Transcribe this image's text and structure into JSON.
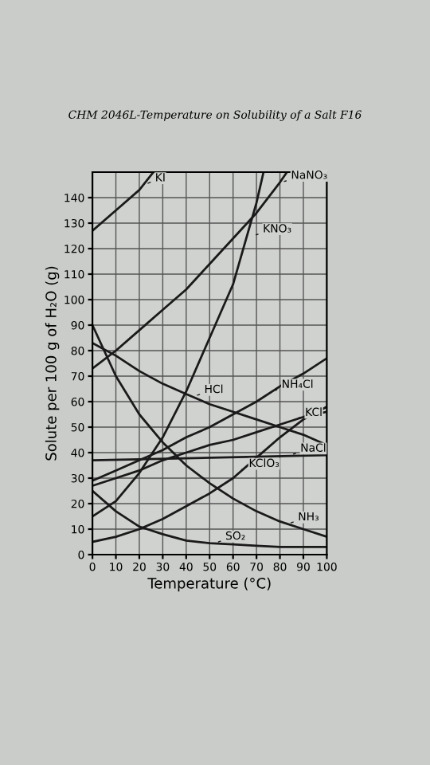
{
  "chart_data": {
    "type": "line",
    "title": "CHM 2046L-Temperature on Solubility of a Salt F16",
    "xlabel": "Temperature (°C)",
    "ylabel": "Solute per 100 g of H₂O (g)",
    "xlim": [
      0,
      100
    ],
    "ylim": [
      0,
      150
    ],
    "xticks": [
      0,
      10,
      20,
      30,
      40,
      50,
      60,
      70,
      80,
      90,
      100
    ],
    "yticks": [
      0,
      10,
      20,
      30,
      40,
      50,
      60,
      70,
      80,
      90,
      100,
      110,
      120,
      130,
      140
    ],
    "grid": true,
    "marker": "none",
    "line_style": "solid",
    "series": [
      {
        "color": "#1a1a1a",
        "x": [
          0,
          10,
          20,
          26
        ],
        "values": [
          127,
          135,
          143,
          150
        ]
      },
      {
        "color": "#1a1a1a",
        "x": [
          0,
          10,
          20,
          30,
          40,
          50,
          60,
          70,
          80,
          83
        ],
        "values": [
          73,
          80,
          88,
          96,
          104,
          114,
          124,
          134,
          146,
          150
        ]
      },
      {
        "color": "#1a1a1a",
        "x": [
          0,
          10,
          20,
          30,
          40,
          50,
          60,
          70,
          73
        ],
        "values": [
          15,
          21,
          32,
          46,
          64,
          85,
          106,
          138,
          150
        ]
      },
      {
        "color": "#1a1a1a",
        "x": [
          0,
          10,
          20,
          30,
          40,
          50,
          60,
          70,
          80,
          90,
          100
        ],
        "values": [
          29,
          33,
          37,
          41,
          46,
          50,
          55,
          60,
          66,
          71,
          77
        ]
      },
      {
        "color": "#1a1a1a",
        "x": [
          0,
          10,
          20,
          30,
          40,
          50,
          60,
          70,
          80,
          90,
          100
        ],
        "values": [
          83,
          78,
          72,
          67,
          63,
          59,
          56,
          53,
          50,
          47,
          43
        ]
      },
      {
        "color": "#1a1a1a",
        "x": [
          0,
          10,
          20,
          30,
          40,
          50,
          60,
          70,
          80,
          90,
          100
        ],
        "values": [
          27,
          30,
          33,
          37,
          40,
          43,
          45,
          48,
          51,
          54,
          56
        ]
      },
      {
        "color": "#1a1a1a",
        "x": [
          0,
          100
        ],
        "values": [
          37,
          39
        ]
      },
      {
        "color": "#1a1a1a",
        "x": [
          0,
          10,
          20,
          30,
          40,
          50,
          60,
          70,
          80,
          90,
          100
        ],
        "values": [
          5,
          7,
          10,
          14,
          19,
          24,
          30,
          38,
          46,
          53,
          58
        ]
      },
      {
        "color": "#1a1a1a",
        "x": [
          0,
          10,
          20,
          30,
          40,
          50,
          60,
          70,
          80,
          90,
          100
        ],
        "values": [
          90,
          70,
          55,
          44,
          35,
          28,
          22,
          17,
          13,
          10,
          7
        ]
      },
      {
        "color": "#1a1a1a",
        "x": [
          0,
          10,
          20,
          30,
          40,
          50,
          60,
          70,
          80,
          90,
          100
        ],
        "values": [
          25,
          17,
          11,
          8,
          5.5,
          4.5,
          4,
          3.5,
          3,
          3,
          3
        ]
      }
    ],
    "annotations": [
      {
        "text": "KI",
        "x": 22,
        "y": 145
      },
      {
        "text": "NaNO₃",
        "x": 80,
        "y": 146
      },
      {
        "text": "KNO₃",
        "x": 68,
        "y": 125
      },
      {
        "text": "NH₄Cl",
        "x": 76,
        "y": 64
      },
      {
        "text": "HCl",
        "x": 43,
        "y": 62
      },
      {
        "text": "KCl",
        "x": 86,
        "y": 53
      },
      {
        "text": "NaCl",
        "x": 84,
        "y": 39
      },
      {
        "text": "KClO₃",
        "x": 62,
        "y": 33
      },
      {
        "text": "NH₃",
        "x": 83,
        "y": 12
      },
      {
        "text": "SO₂",
        "x": 52,
        "y": 4.5
      }
    ]
  }
}
